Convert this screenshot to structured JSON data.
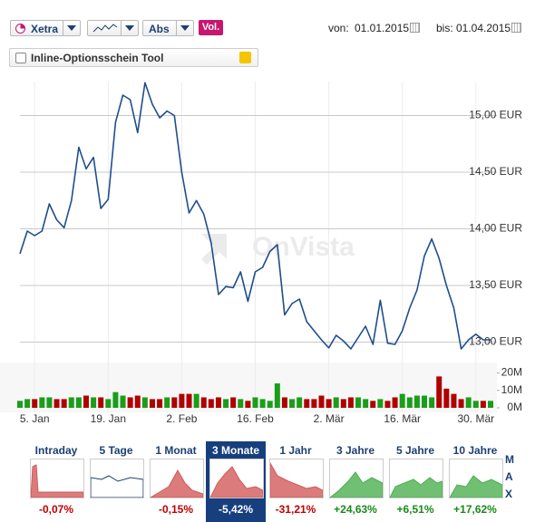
{
  "toolbar": {
    "exchange": "Xetra",
    "mode": "Abs",
    "volume_button": "Vol.",
    "from_label": "von:",
    "from": "01.01.2015",
    "to_label": "bis:",
    "to": "01.04.2015"
  },
  "tool_checkbox": "Inline-Optionsschein Tool",
  "watermark": "OnVista",
  "chart_data": [
    {
      "type": "line",
      "color": "#1f4e8c",
      "grid": true,
      "values": [
        13.78,
        13.98,
        13.94,
        13.98,
        14.22,
        14.08,
        14.01,
        14.25,
        14.72,
        14.53,
        14.63,
        14.18,
        14.26,
        14.94,
        15.18,
        15.14,
        14.85,
        15.29,
        15.1,
        14.98,
        15.04,
        15.0,
        14.5,
        14.14,
        14.25,
        14.13,
        13.88,
        13.42,
        13.49,
        13.48,
        13.62,
        13.36,
        13.62,
        13.66,
        13.8,
        13.86,
        13.24,
        13.34,
        13.38,
        13.18,
        13.1,
        13.02,
        12.95,
        13.06,
        13.01,
        12.94,
        13.04,
        13.14,
        12.98,
        13.37,
        12.99,
        12.98,
        13.1,
        13.3,
        13.46,
        13.76,
        13.91,
        13.74,
        13.5,
        13.3,
        12.94,
        13.02,
        13.07,
        13.02,
        13.02
      ],
      "ylim": [
        12.86,
        15.3
      ],
      "yticks": [
        {
          "value": 13,
          "label": "13,00 EUR"
        },
        {
          "value": 13.5,
          "label": "13,50 EUR"
        },
        {
          "value": 14,
          "label": "14,00 EUR"
        },
        {
          "value": 14.5,
          "label": "14,50 EUR"
        },
        {
          "value": 15,
          "label": "15,00 EUR"
        }
      ]
    },
    {
      "type": "bar",
      "grid": false,
      "categories": [
        null,
        null,
        "5. Jan",
        null,
        null,
        null,
        null,
        null,
        null,
        null,
        null,
        null,
        "19. Jan",
        null,
        null,
        null,
        null,
        null,
        null,
        null,
        null,
        null,
        "2. Feb",
        null,
        null,
        null,
        null,
        null,
        null,
        null,
        null,
        null,
        "16. Feb",
        null,
        null,
        null,
        null,
        null,
        null,
        null,
        null,
        null,
        "2. Mär",
        null,
        null,
        null,
        null,
        null,
        null,
        null,
        null,
        null,
        "16. Mär",
        null,
        null,
        null,
        null,
        null,
        null,
        null,
        null,
        null,
        "30. Mär",
        null,
        null
      ],
      "values": [
        4,
        5,
        5,
        6,
        6,
        5,
        5,
        6,
        6,
        7,
        6,
        6,
        5,
        9,
        7,
        6,
        7,
        6,
        5,
        5,
        6,
        6,
        8,
        8,
        8,
        6,
        5,
        6,
        5,
        6,
        5,
        4,
        6,
        5,
        4,
        14,
        6,
        5,
        6,
        5,
        5,
        7,
        5,
        6,
        5,
        6,
        6,
        5,
        4,
        5,
        4,
        6,
        8,
        6,
        7,
        7,
        6,
        18,
        11,
        8,
        5,
        6,
        4,
        4,
        4
      ],
      "colors": [
        "#1a9e1a",
        "#1a9e1a",
        "#b00000",
        "#1a9e1a",
        "#1a9e1a",
        "#b00000",
        "#b00000",
        "#1a9e1a",
        "#1a9e1a",
        "#b00000",
        "#1a9e1a",
        "#b00000",
        "#1a9e1a",
        "#1a9e1a",
        "#1a9e1a",
        "#b00000",
        "#b00000",
        "#1a9e1a",
        "#b00000",
        "#b00000",
        "#1a9e1a",
        "#b00000",
        "#b00000",
        "#b00000",
        "#1a9e1a",
        "#b00000",
        "#b00000",
        "#b00000",
        "#1a9e1a",
        "#b00000",
        "#1a9e1a",
        "#b00000",
        "#1a9e1a",
        "#1a9e1a",
        "#1a9e1a",
        "#1a9e1a",
        "#b00000",
        "#1a9e1a",
        "#1a9e1a",
        "#b00000",
        "#b00000",
        "#b00000",
        "#b00000",
        "#1a9e1a",
        "#b00000",
        "#b00000",
        "#1a9e1a",
        "#1a9e1a",
        "#b00000",
        "#1a9e1a",
        "#b00000",
        "#b00000",
        "#1a9e1a",
        "#1a9e1a",
        "#1a9e1a",
        "#1a9e1a",
        "#1a9e1a",
        "#b00000",
        "#b00000",
        "#b00000",
        "#b00000",
        "#1a9e1a",
        "#1a9e1a",
        "#b00000",
        "#1a9e1a"
      ],
      "ylim": [
        0,
        26
      ],
      "yticks": [
        {
          "value": 0,
          "label": "0M"
        },
        {
          "value": 10,
          "label": "10M"
        },
        {
          "value": 20,
          "label": "20M"
        }
      ]
    }
  ],
  "periods": [
    {
      "label": "Intraday",
      "change": "-0,07%"
    },
    {
      "label": "5 Tage"
    },
    {
      "label": "1 Monat",
      "change": "-0,15%"
    },
    {
      "label": "3 Monate",
      "change": "-5,42%"
    },
    {
      "label": "1 Jahr",
      "change": "-31,21%"
    },
    {
      "label": "3 Jahre",
      "change": "+24,63%"
    },
    {
      "label": "5 Jahre",
      "change": "+6,51%"
    },
    {
      "label": "10 Jahre",
      "change": "+17,62%"
    }
  ],
  "max_label": [
    "M",
    "A",
    "X"
  ]
}
